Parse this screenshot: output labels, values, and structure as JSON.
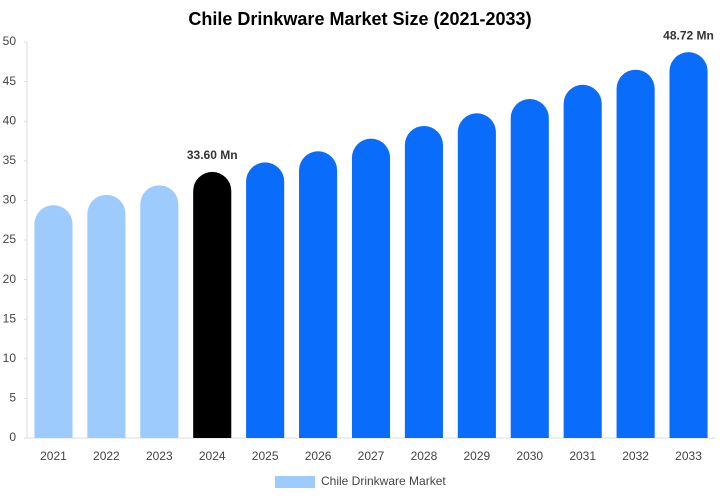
{
  "chart_data": {
    "type": "bar",
    "title": "Chile Drinkware Market Size (2021-2033)",
    "categories": [
      "2021",
      "2022",
      "2023",
      "2024",
      "2025",
      "2026",
      "2027",
      "2028",
      "2029",
      "2030",
      "2031",
      "2032",
      "2033"
    ],
    "series": [
      {
        "name": "Chile Drinkware Market",
        "color": "#9ecbfd",
        "values": [
          29.4,
          30.7,
          31.9,
          33.6,
          34.8,
          36.2,
          37.8,
          39.4,
          41.0,
          42.8,
          44.6,
          46.5,
          48.72
        ],
        "value_labels": [
          null,
          null,
          null,
          "33.60 Mn",
          null,
          null,
          null,
          null,
          null,
          null,
          null,
          null,
          "48.72 Mn"
        ],
        "colors": [
          "#9ecbfd",
          "#9ecbfd",
          "#9ecbfd",
          "#000000",
          "#0a6cfb",
          "#0a6cfb",
          "#0a6cfb",
          "#0a6cfb",
          "#0a6cfb",
          "#0a6cfb",
          "#0a6cfb",
          "#0a6cfb",
          "#0a6cfb"
        ]
      }
    ],
    "ylim": [
      0,
      50
    ],
    "yticks": [
      0,
      5,
      10,
      15,
      20,
      25,
      30,
      35,
      40,
      45,
      50
    ],
    "grid": false,
    "legend": "bottom"
  }
}
